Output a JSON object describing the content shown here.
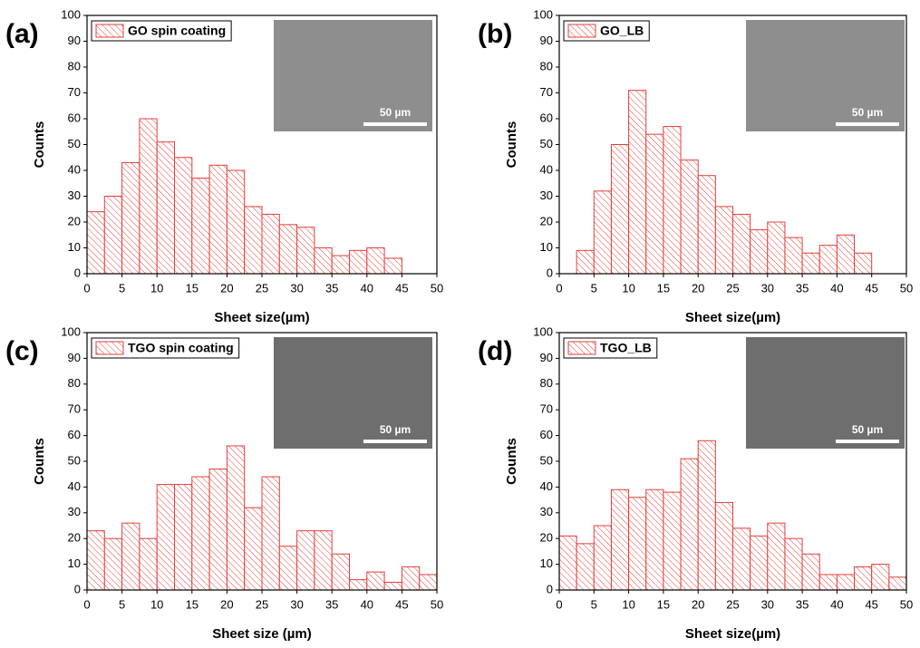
{
  "chart_data": [
    {
      "type": "histogram",
      "panel_label": "(a)",
      "legend": "GO spin coating",
      "color": "#e2403c",
      "x_label": "Sheet size(µm)",
      "y_label": "Counts",
      "inset_scale_label": "50 µm",
      "bins": [
        0,
        2.5,
        5,
        7.5,
        10,
        12.5,
        15,
        17.5,
        20,
        22.5,
        25,
        27.5,
        30,
        32.5,
        35,
        37.5,
        40,
        42.5,
        45
      ],
      "values": [
        24,
        30,
        43,
        60,
        51,
        45,
        37,
        42,
        40,
        26,
        23,
        19,
        18,
        10,
        7,
        9,
        10,
        6
      ],
      "xlim": [
        0,
        50
      ],
      "ylim": [
        0,
        100
      ],
      "xticks": [
        0,
        5,
        10,
        15,
        20,
        25,
        30,
        35,
        40,
        45,
        50
      ],
      "yticks": [
        0,
        10,
        20,
        30,
        40,
        50,
        60,
        70,
        80,
        90,
        100
      ]
    },
    {
      "type": "histogram",
      "panel_label": "(b)",
      "legend": "GO_LB",
      "color": "#e2403c",
      "x_label": "Sheet size(µm)",
      "y_label": "Counts",
      "inset_scale_label": "50 µm",
      "bins": [
        2.5,
        5,
        7.5,
        10,
        12.5,
        15,
        17.5,
        20,
        22.5,
        25,
        27.5,
        30,
        32.5,
        35,
        37.5,
        40,
        42.5,
        45
      ],
      "values": [
        9,
        32,
        50,
        71,
        54,
        57,
        44,
        38,
        26,
        23,
        17,
        20,
        14,
        8,
        11,
        15,
        8
      ],
      "xlim": [
        0,
        50
      ],
      "ylim": [
        0,
        100
      ],
      "xticks": [
        0,
        5,
        10,
        15,
        20,
        25,
        30,
        35,
        40,
        45,
        50
      ],
      "yticks": [
        0,
        10,
        20,
        30,
        40,
        50,
        60,
        70,
        80,
        90,
        100
      ]
    },
    {
      "type": "histogram",
      "panel_label": "(c)",
      "legend": "TGO spin coating",
      "color": "#e2403c",
      "x_label": "Sheet size (µm)",
      "y_label": "Counts",
      "inset_scale_label": "50 µm",
      "bins": [
        0,
        2.5,
        5,
        7.5,
        10,
        12.5,
        15,
        17.5,
        20,
        22.5,
        25,
        27.5,
        30,
        32.5,
        35,
        37.5,
        40,
        42.5,
        45,
        47.5,
        50
      ],
      "values": [
        23,
        20,
        26,
        20,
        41,
        41,
        44,
        47,
        56,
        32,
        44,
        17,
        23,
        23,
        14,
        4,
        7,
        3,
        9,
        6
      ],
      "xlim": [
        0,
        50
      ],
      "ylim": [
        0,
        100
      ],
      "xticks": [
        0,
        5,
        10,
        15,
        20,
        25,
        30,
        35,
        40,
        45,
        50
      ],
      "yticks": [
        0,
        10,
        20,
        30,
        40,
        50,
        60,
        70,
        80,
        90,
        100
      ]
    },
    {
      "type": "histogram",
      "panel_label": "(d)",
      "legend": "TGO_LB",
      "color": "#e2403c",
      "x_label": "Sheet size(µm)",
      "y_label": "Counts",
      "inset_scale_label": "50 µm",
      "bins": [
        0,
        2.5,
        5,
        7.5,
        10,
        12.5,
        15,
        17.5,
        20,
        22.5,
        25,
        27.5,
        30,
        32.5,
        35,
        37.5,
        40,
        42.5,
        45,
        47.5,
        50
      ],
      "values": [
        21,
        18,
        25,
        39,
        36,
        39,
        38,
        51,
        58,
        34,
        24,
        21,
        26,
        20,
        14,
        6,
        6,
        9,
        10,
        5
      ],
      "xlim": [
        0,
        50
      ],
      "ylim": [
        0,
        100
      ],
      "xticks": [
        0,
        5,
        10,
        15,
        20,
        25,
        30,
        35,
        40,
        45,
        50
      ],
      "yticks": [
        0,
        10,
        20,
        30,
        40,
        50,
        60,
        70,
        80,
        90,
        100
      ]
    }
  ]
}
